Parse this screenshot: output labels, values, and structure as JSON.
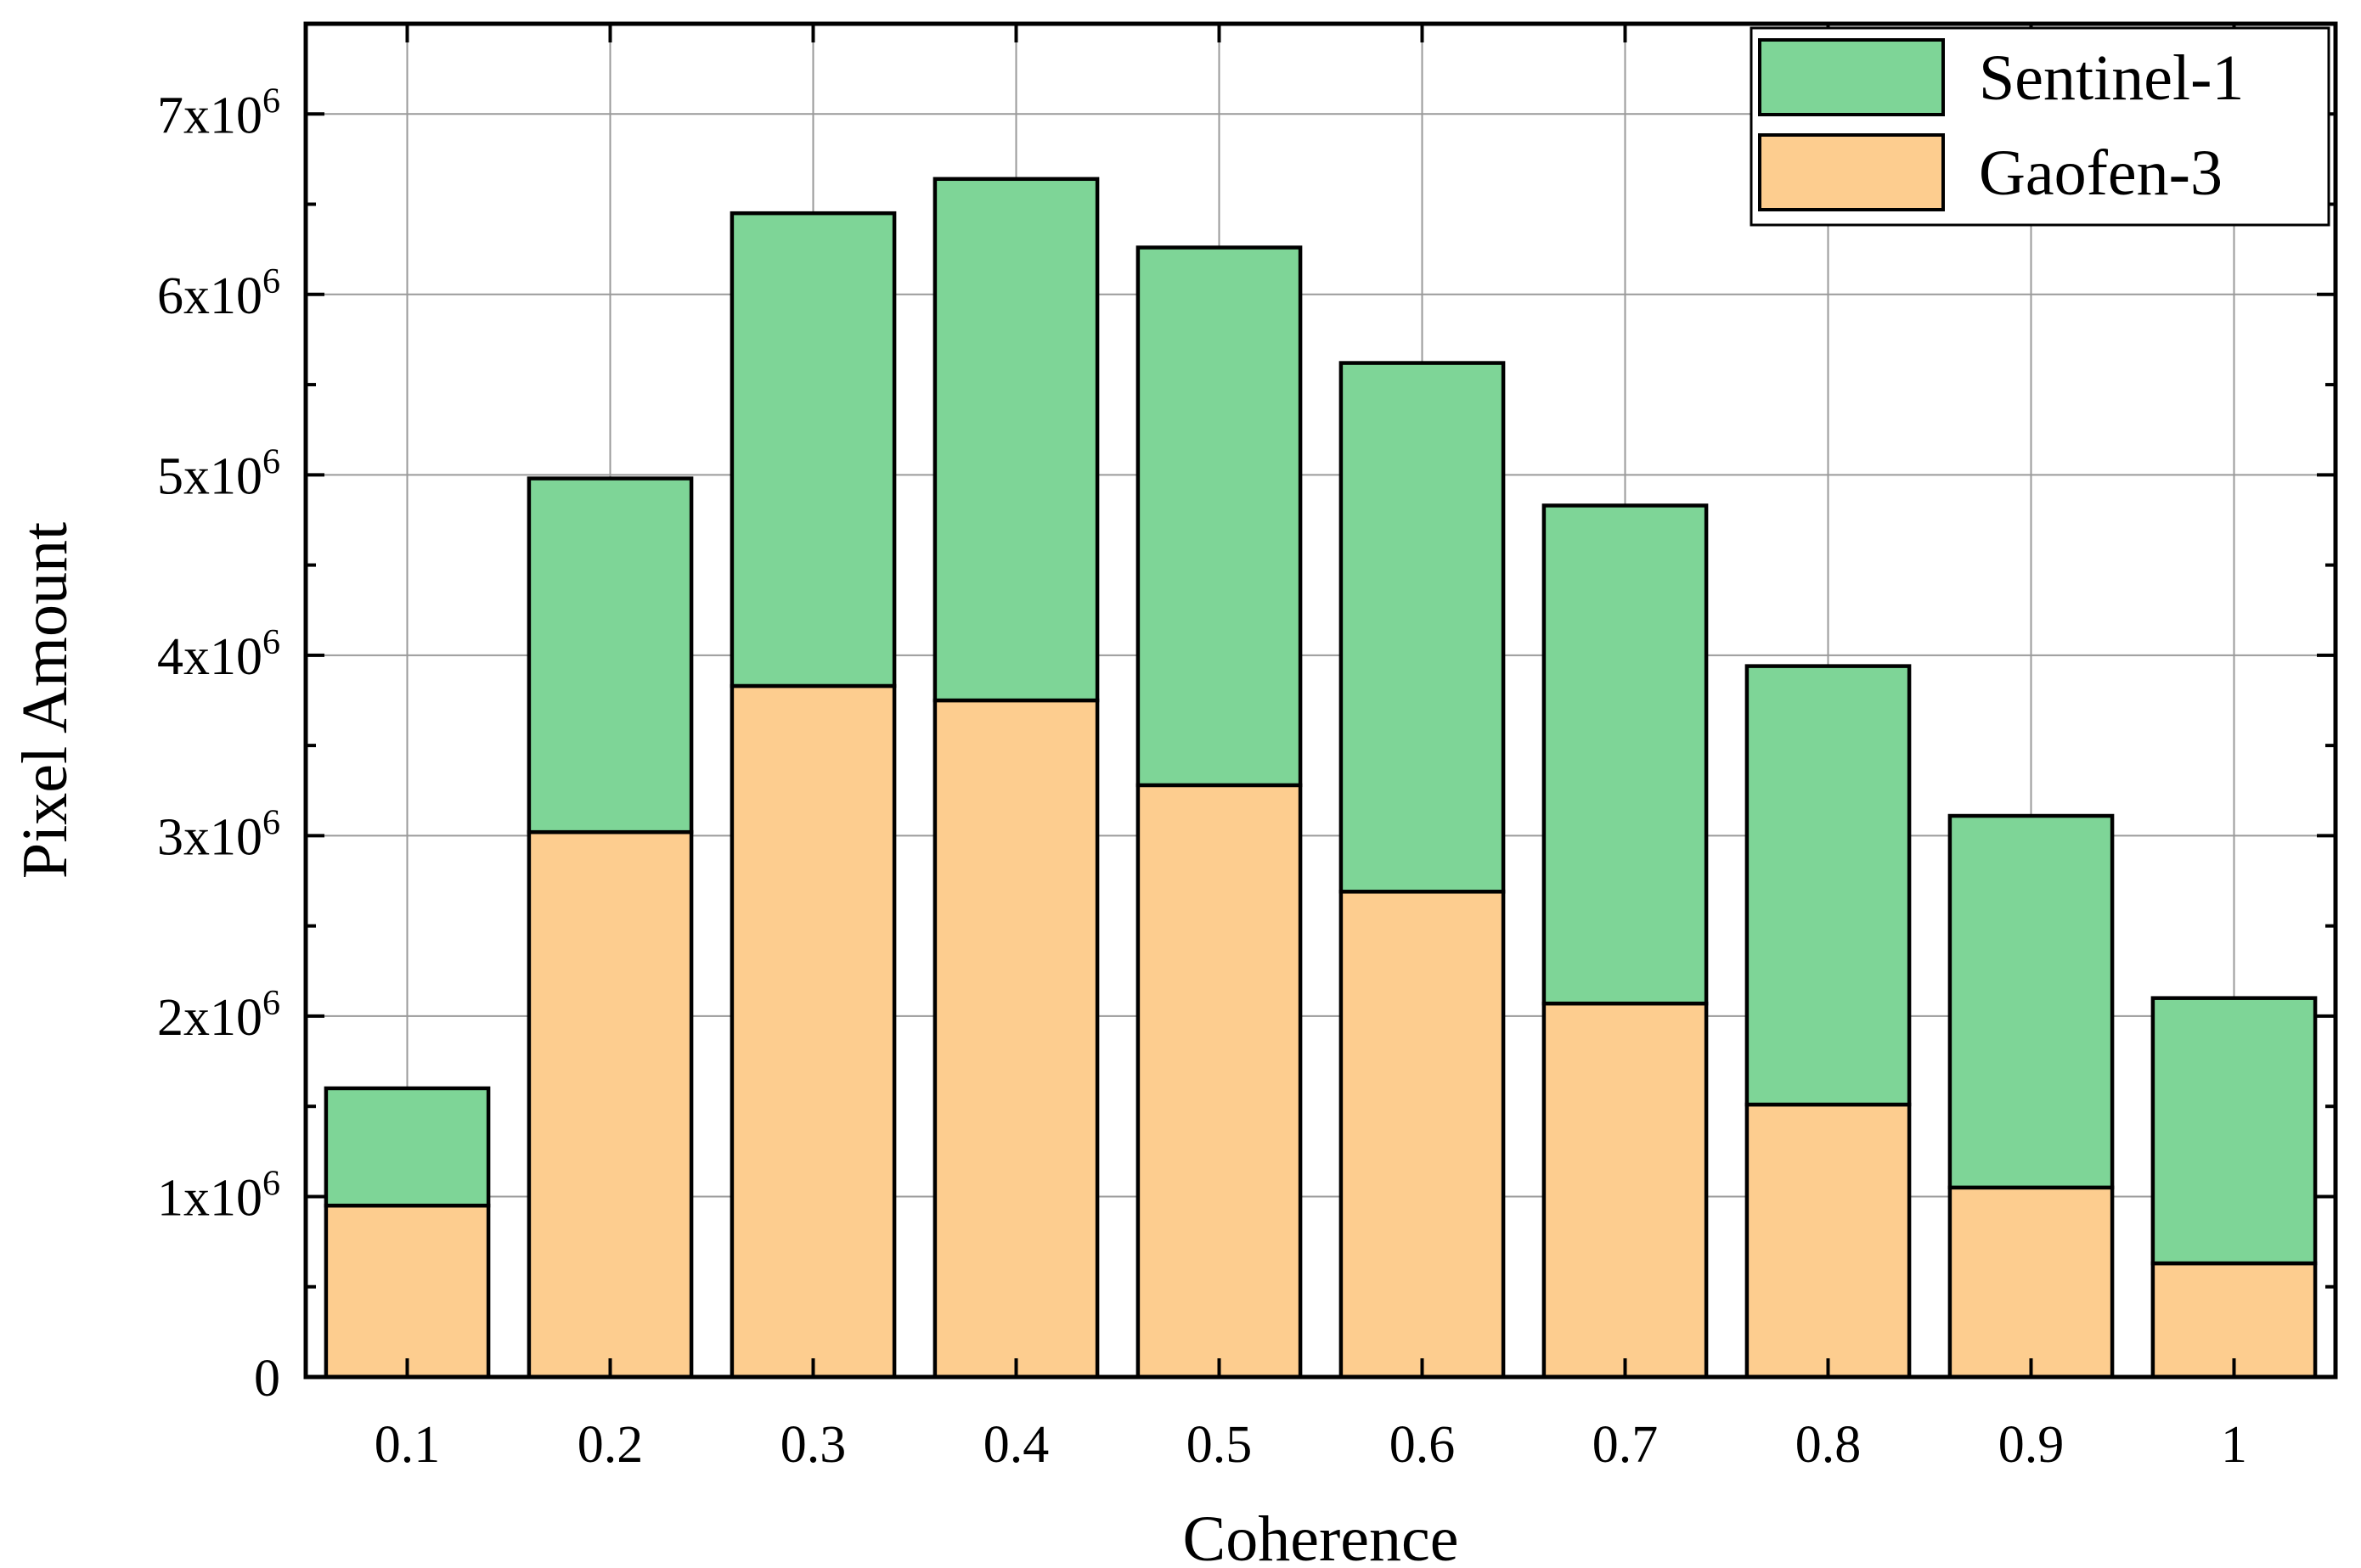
{
  "chart_data": {
    "type": "bar",
    "stacked": true,
    "title": "",
    "xlabel": "Coherence",
    "ylabel": "Pixel Amount",
    "categories": [
      "0.1",
      "0.2",
      "0.3",
      "0.4",
      "0.5",
      "0.6",
      "0.7",
      "0.8",
      "0.9",
      "1"
    ],
    "series": [
      {
        "name": "Gaofen-3",
        "color": "#FDCD8F",
        "values": [
          950000,
          3020000,
          3830000,
          3750000,
          3280000,
          2690000,
          2070000,
          1510000,
          1050000,
          630000
        ]
      },
      {
        "name": "Sentinel-1",
        "color": "#7ED597",
        "values": [
          650000,
          1960000,
          2620000,
          2890000,
          2980000,
          2930000,
          2760000,
          2430000,
          2060000,
          1470000
        ]
      }
    ],
    "ylim": [
      0,
      7500000
    ],
    "yticks": [
      {
        "value": 0,
        "mantissa": "0",
        "exp": ""
      },
      {
        "value": 1000000,
        "mantissa": "1x10",
        "exp": "6"
      },
      {
        "value": 2000000,
        "mantissa": "2x10",
        "exp": "6"
      },
      {
        "value": 3000000,
        "mantissa": "3x10",
        "exp": "6"
      },
      {
        "value": 4000000,
        "mantissa": "4x10",
        "exp": "6"
      },
      {
        "value": 5000000,
        "mantissa": "5x10",
        "exp": "6"
      },
      {
        "value": 6000000,
        "mantissa": "6x10",
        "exp": "6"
      },
      {
        "value": 7000000,
        "mantissa": "7x10",
        "exp": "6"
      }
    ],
    "legend": {
      "position": "top-right",
      "entries": [
        {
          "label": "Sentinel-1",
          "color": "#7ED597"
        },
        {
          "label": "Gaofen-3",
          "color": "#FDCD8F"
        }
      ]
    },
    "grid": true
  }
}
